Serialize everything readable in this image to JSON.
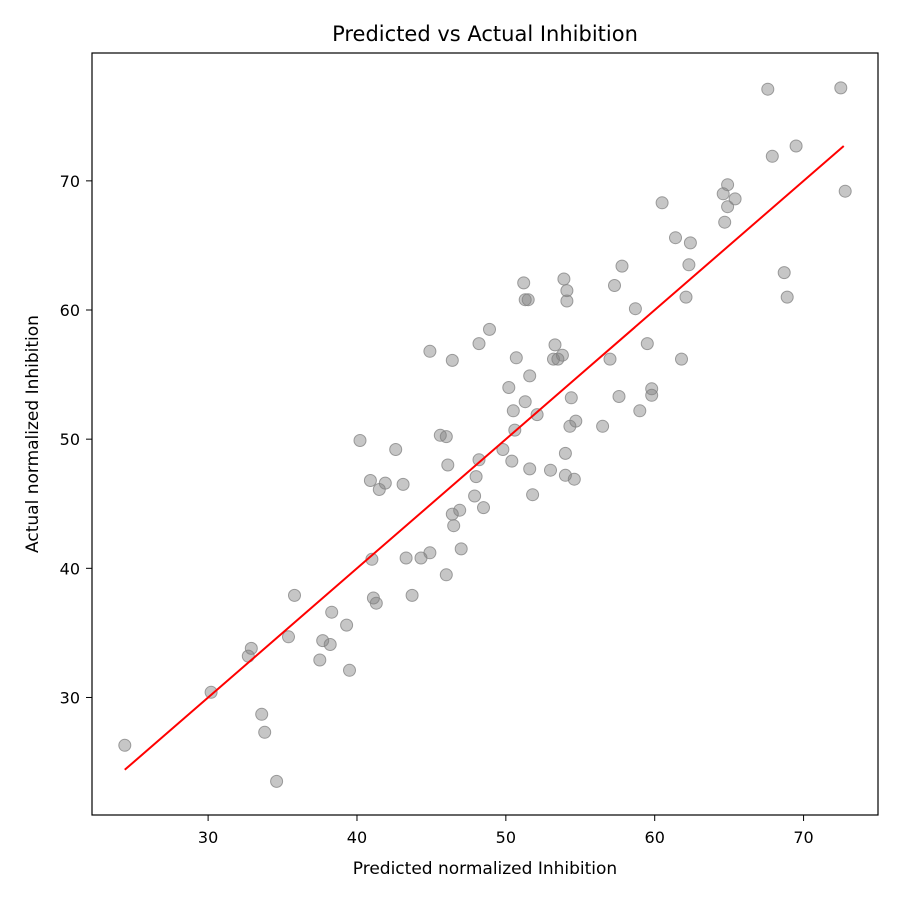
{
  "chart_data": {
    "type": "scatter",
    "title": "Predicted vs Actual Inhibition",
    "xlabel": "Predicted normalized Inhibition",
    "ylabel": "Actual normalized Inhibition",
    "xlim": [
      22.2,
      75.0
    ],
    "ylim": [
      20.9,
      79.9
    ],
    "xticks": [
      30,
      40,
      50,
      60,
      70
    ],
    "yticks": [
      30,
      40,
      50,
      60,
      70
    ],
    "grid": false,
    "point_color": "#808080",
    "line_color": "#ff0000",
    "fit_line": {
      "x": [
        24.4,
        72.7
      ],
      "y": [
        24.4,
        72.7
      ]
    },
    "points": [
      {
        "x": 24.4,
        "y": 26.3
      },
      {
        "x": 30.2,
        "y": 30.4
      },
      {
        "x": 32.7,
        "y": 33.2
      },
      {
        "x": 32.9,
        "y": 33.8
      },
      {
        "x": 33.6,
        "y": 28.7
      },
      {
        "x": 33.8,
        "y": 27.3
      },
      {
        "x": 34.6,
        "y": 23.5
      },
      {
        "x": 35.4,
        "y": 34.7
      },
      {
        "x": 35.8,
        "y": 37.9
      },
      {
        "x": 37.5,
        "y": 32.9
      },
      {
        "x": 37.7,
        "y": 34.4
      },
      {
        "x": 38.2,
        "y": 34.1
      },
      {
        "x": 38.3,
        "y": 36.6
      },
      {
        "x": 39.3,
        "y": 35.6
      },
      {
        "x": 39.5,
        "y": 32.1
      },
      {
        "x": 40.2,
        "y": 49.9
      },
      {
        "x": 40.9,
        "y": 46.8
      },
      {
        "x": 41.0,
        "y": 40.7
      },
      {
        "x": 41.1,
        "y": 37.7
      },
      {
        "x": 41.3,
        "y": 37.3
      },
      {
        "x": 41.5,
        "y": 46.1
      },
      {
        "x": 41.9,
        "y": 46.6
      },
      {
        "x": 42.6,
        "y": 49.2
      },
      {
        "x": 43.1,
        "y": 46.5
      },
      {
        "x": 43.3,
        "y": 40.8
      },
      {
        "x": 43.7,
        "y": 37.9
      },
      {
        "x": 44.3,
        "y": 40.8
      },
      {
        "x": 44.9,
        "y": 41.2
      },
      {
        "x": 44.9,
        "y": 56.8
      },
      {
        "x": 45.6,
        "y": 50.3
      },
      {
        "x": 46.0,
        "y": 50.2
      },
      {
        "x": 46.0,
        "y": 39.5
      },
      {
        "x": 46.1,
        "y": 48.0
      },
      {
        "x": 46.4,
        "y": 44.2
      },
      {
        "x": 46.4,
        "y": 56.1
      },
      {
        "x": 46.5,
        "y": 43.3
      },
      {
        "x": 46.9,
        "y": 44.5
      },
      {
        "x": 47.0,
        "y": 41.5
      },
      {
        "x": 47.9,
        "y": 45.6
      },
      {
        "x": 48.0,
        "y": 47.1
      },
      {
        "x": 48.2,
        "y": 48.4
      },
      {
        "x": 48.2,
        "y": 57.4
      },
      {
        "x": 48.5,
        "y": 44.7
      },
      {
        "x": 48.9,
        "y": 58.5
      },
      {
        "x": 49.8,
        "y": 49.2
      },
      {
        "x": 50.2,
        "y": 54.0
      },
      {
        "x": 50.4,
        "y": 48.3
      },
      {
        "x": 50.5,
        "y": 52.2
      },
      {
        "x": 50.6,
        "y": 50.7
      },
      {
        "x": 50.7,
        "y": 56.3
      },
      {
        "x": 51.2,
        "y": 62.1
      },
      {
        "x": 51.3,
        "y": 60.8
      },
      {
        "x": 51.3,
        "y": 52.9
      },
      {
        "x": 51.5,
        "y": 60.8
      },
      {
        "x": 51.6,
        "y": 54.9
      },
      {
        "x": 51.6,
        "y": 47.7
      },
      {
        "x": 51.8,
        "y": 45.7
      },
      {
        "x": 52.1,
        "y": 51.9
      },
      {
        "x": 53.0,
        "y": 47.6
      },
      {
        "x": 53.2,
        "y": 56.2
      },
      {
        "x": 53.3,
        "y": 57.3
      },
      {
        "x": 53.5,
        "y": 56.2
      },
      {
        "x": 53.8,
        "y": 56.5
      },
      {
        "x": 53.9,
        "y": 62.4
      },
      {
        "x": 54.0,
        "y": 48.9
      },
      {
        "x": 54.0,
        "y": 47.2
      },
      {
        "x": 54.1,
        "y": 60.7
      },
      {
        "x": 54.1,
        "y": 61.5
      },
      {
        "x": 54.3,
        "y": 51.0
      },
      {
        "x": 54.4,
        "y": 53.2
      },
      {
        "x": 54.6,
        "y": 46.9
      },
      {
        "x": 54.7,
        "y": 51.4
      },
      {
        "x": 56.5,
        "y": 51.0
      },
      {
        "x": 57.0,
        "y": 56.2
      },
      {
        "x": 57.3,
        "y": 61.9
      },
      {
        "x": 57.6,
        "y": 53.3
      },
      {
        "x": 57.8,
        "y": 63.4
      },
      {
        "x": 58.7,
        "y": 60.1
      },
      {
        "x": 59.0,
        "y": 52.2
      },
      {
        "x": 59.5,
        "y": 57.4
      },
      {
        "x": 59.8,
        "y": 53.9
      },
      {
        "x": 59.8,
        "y": 53.4
      },
      {
        "x": 60.5,
        "y": 68.3
      },
      {
        "x": 61.4,
        "y": 65.6
      },
      {
        "x": 61.8,
        "y": 56.2
      },
      {
        "x": 62.1,
        "y": 61.0
      },
      {
        "x": 62.3,
        "y": 63.5
      },
      {
        "x": 62.4,
        "y": 65.2
      },
      {
        "x": 64.6,
        "y": 69.0
      },
      {
        "x": 64.7,
        "y": 66.8
      },
      {
        "x": 64.9,
        "y": 68.0
      },
      {
        "x": 64.9,
        "y": 69.7
      },
      {
        "x": 65.4,
        "y": 68.6
      },
      {
        "x": 67.6,
        "y": 77.1
      },
      {
        "x": 67.9,
        "y": 71.9
      },
      {
        "x": 68.7,
        "y": 62.9
      },
      {
        "x": 68.9,
        "y": 61.0
      },
      {
        "x": 69.5,
        "y": 72.7
      },
      {
        "x": 72.5,
        "y": 77.2
      },
      {
        "x": 72.8,
        "y": 69.2
      }
    ]
  }
}
